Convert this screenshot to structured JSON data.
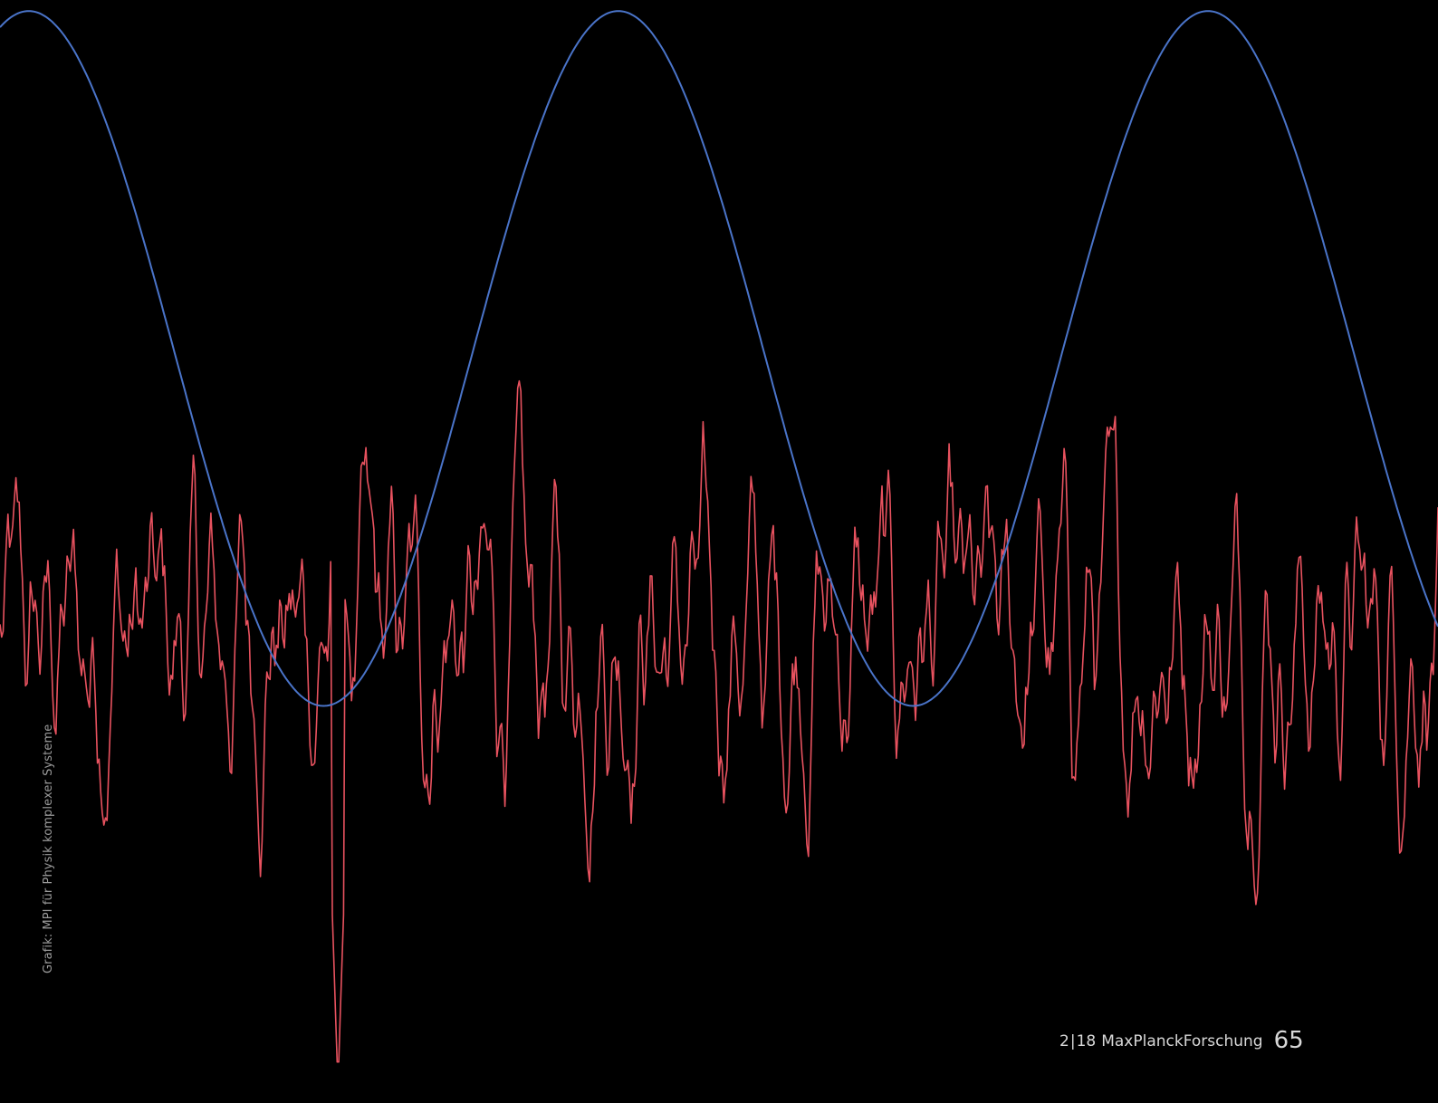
{
  "credit": "Grafik: MPI für Physik komplexer Systeme",
  "footer": {
    "issue": "2",
    "separator": "|",
    "year": "18",
    "magazine": "MaxPlanckForschung",
    "page": "65"
  },
  "chart_data": {
    "type": "line",
    "xlim": [
      0,
      1
    ],
    "ylim": [
      0,
      1
    ],
    "grid": false,
    "series": [
      {
        "color": "#4a74c9",
        "kind": "sine",
        "period": 0.41,
        "peaks_x": [
          0.02,
          0.43,
          0.84
        ],
        "min": 0.36,
        "max": 0.99,
        "peak_value": 0.99,
        "trough_value": 0.36
      },
      {
        "color": "#e8525f",
        "kind": "noise",
        "samples": 900,
        "baseline": 0.42,
        "global_min": 0.0,
        "global_max": 0.72
      }
    ]
  }
}
